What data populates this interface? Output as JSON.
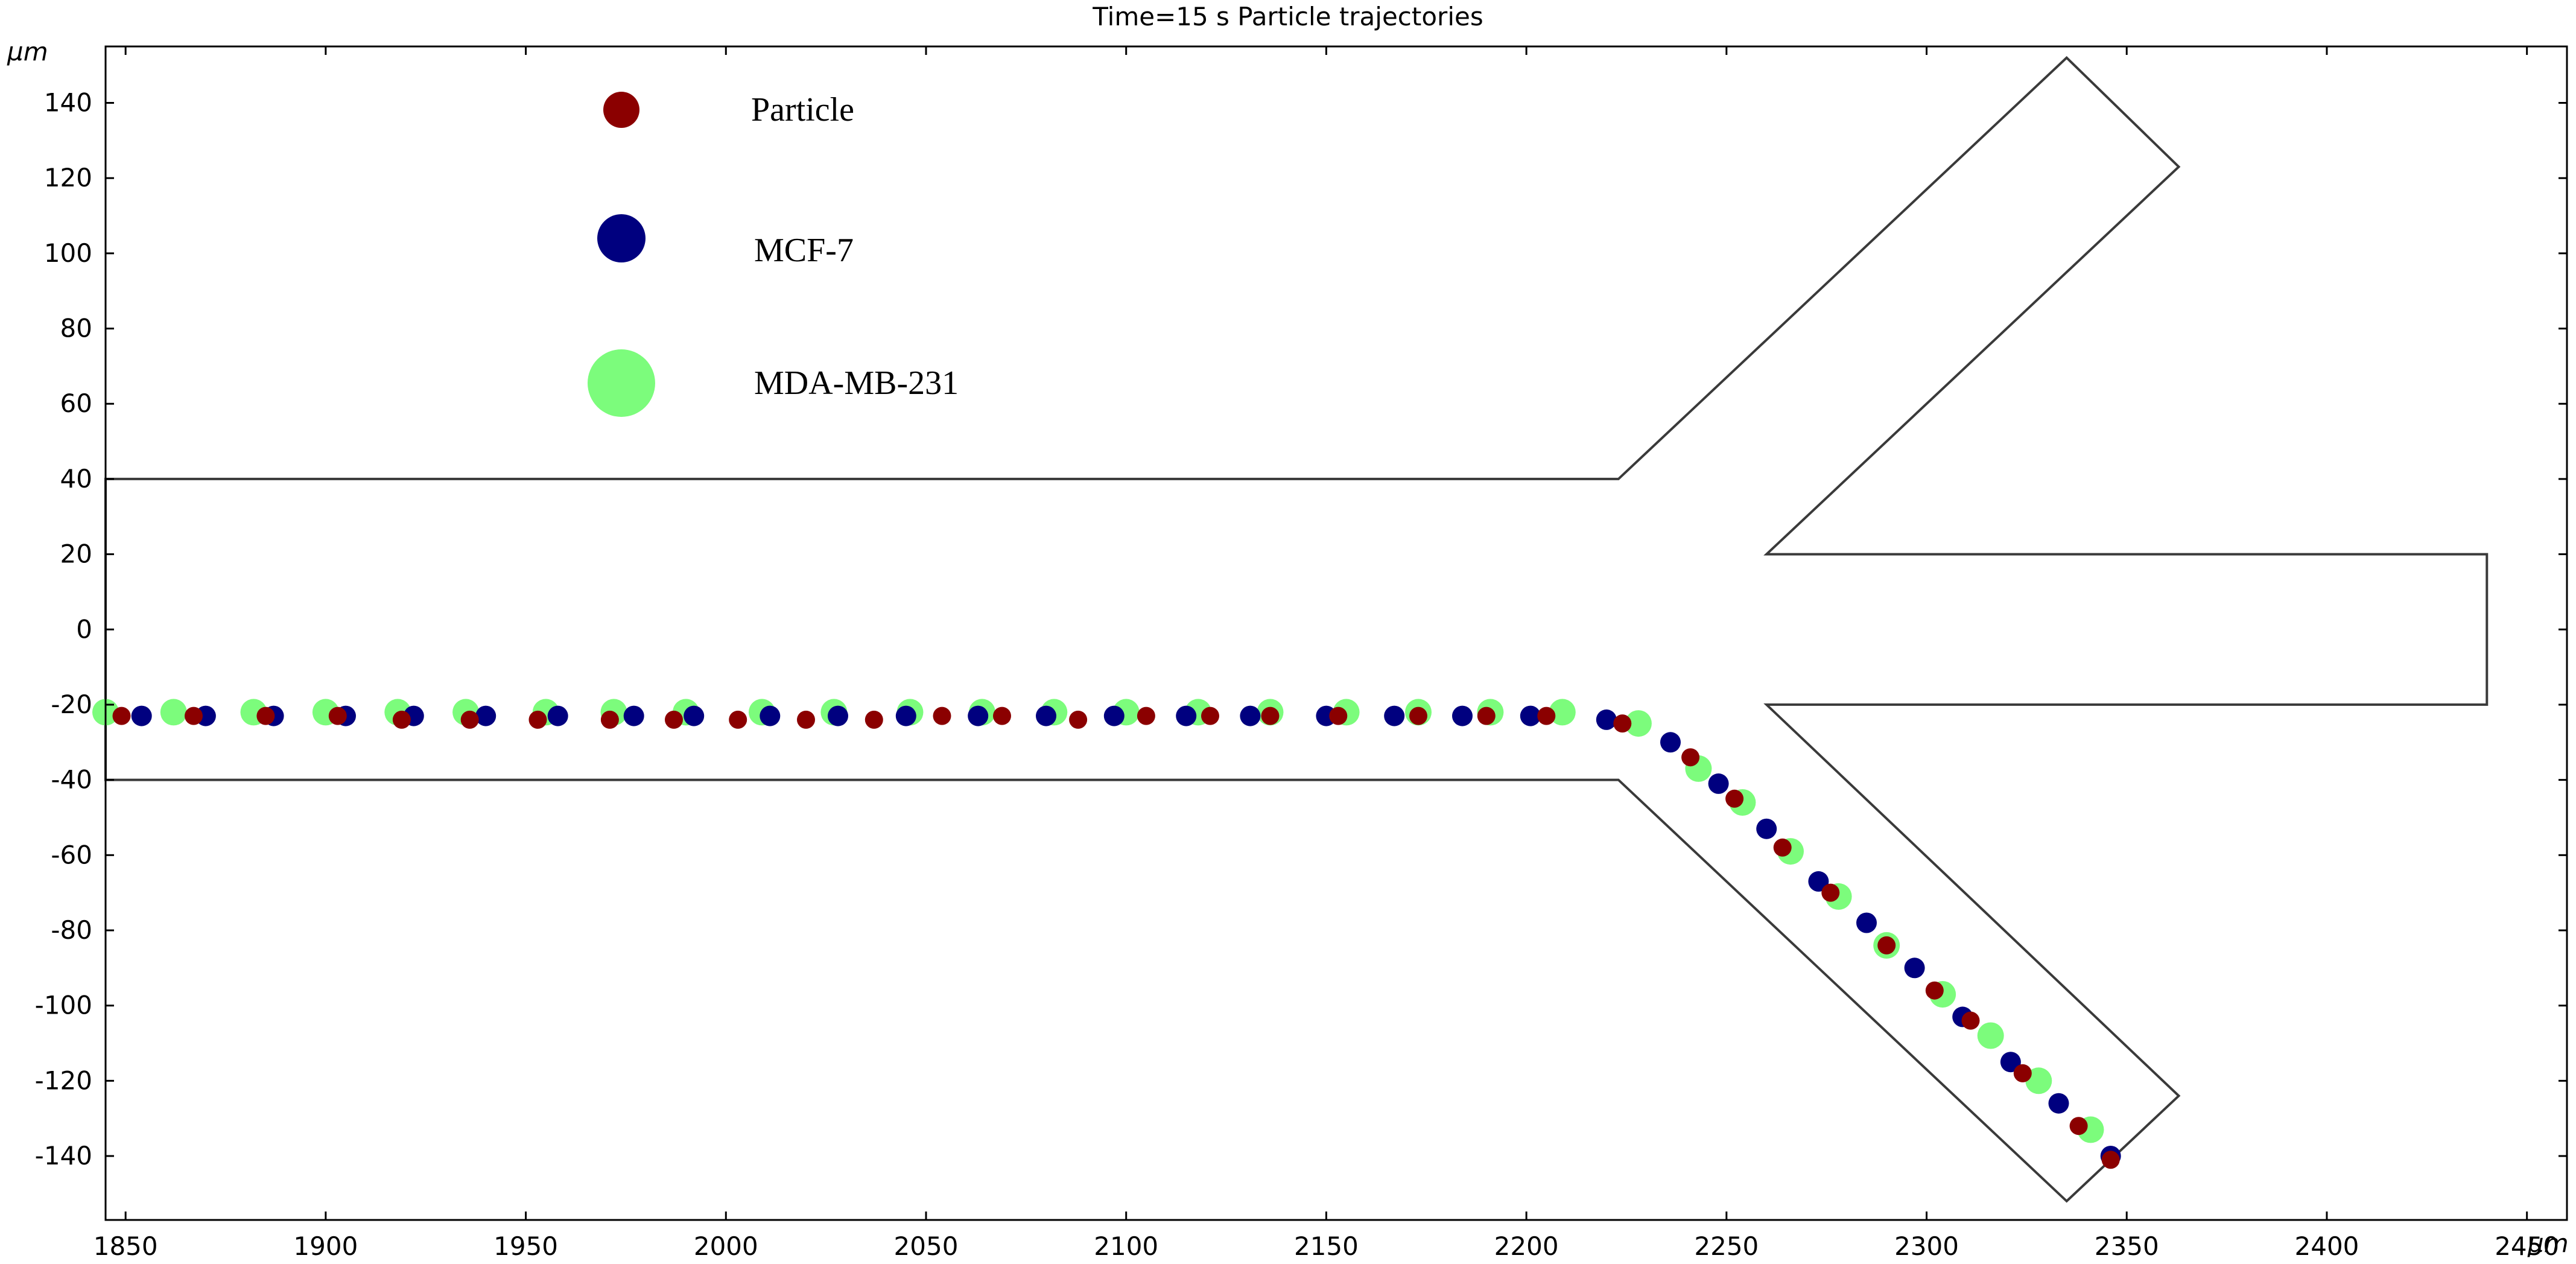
{
  "chart_data": {
    "type": "scatter",
    "title": "Time=15 s  Particle trajectories",
    "xunit": "μm",
    "yunit": "μm",
    "xlim": [
      1845,
      2460
    ],
    "ylim": [
      -157,
      155
    ],
    "x_ticks": [
      1850,
      1900,
      1950,
      2000,
      2050,
      2100,
      2150,
      2200,
      2250,
      2300,
      2350,
      2400,
      2450
    ],
    "y_ticks": [
      140,
      120,
      100,
      80,
      60,
      40,
      20,
      0,
      -20,
      -40,
      -60,
      -80,
      -100,
      -120,
      -140
    ],
    "channel_outline": [
      [
        [
          1845,
          40
        ],
        [
          2223,
          40
        ],
        [
          2335,
          152
        ],
        [
          2363,
          123
        ],
        [
          2260,
          20
        ],
        [
          2440,
          20
        ],
        [
          2440,
          -20
        ],
        [
          2260,
          -20
        ],
        [
          2363,
          -124
        ],
        [
          2335,
          -152
        ],
        [
          2223,
          -40
        ],
        [
          1845,
          -40
        ]
      ]
    ],
    "legend": {
      "placement": "top-left",
      "entries": [
        {
          "label": "Particle",
          "color": "#8b0000"
        },
        {
          "label": "MCF-7",
          "color": "#00007f"
        },
        {
          "label": "MDA-MB-231",
          "color": "#7cfc7c"
        }
      ]
    },
    "series": [
      {
        "name": "MDA-MB-231",
        "color": "#7cfc7c",
        "marker_size": "large",
        "points": [
          [
            1845,
            -22
          ],
          [
            1862,
            -22
          ],
          [
            1882,
            -22
          ],
          [
            1900,
            -22
          ],
          [
            1918,
            -22
          ],
          [
            1935,
            -22
          ],
          [
            1955,
            -22
          ],
          [
            1972,
            -22
          ],
          [
            1990,
            -22
          ],
          [
            2009,
            -22
          ],
          [
            2027,
            -22
          ],
          [
            2046,
            -22
          ],
          [
            2064,
            -22
          ],
          [
            2082,
            -22
          ],
          [
            2100,
            -22
          ],
          [
            2118,
            -22
          ],
          [
            2136,
            -22
          ],
          [
            2155,
            -22
          ],
          [
            2173,
            -22
          ],
          [
            2191,
            -22
          ],
          [
            2209,
            -22
          ],
          [
            2228,
            -25
          ],
          [
            2243,
            -37
          ],
          [
            2254,
            -46
          ],
          [
            2266,
            -59
          ],
          [
            2278,
            -71
          ],
          [
            2290,
            -84
          ],
          [
            2304,
            -97
          ],
          [
            2316,
            -108
          ],
          [
            2328,
            -120
          ],
          [
            2341,
            -133
          ]
        ]
      },
      {
        "name": "MCF-7",
        "color": "#00007f",
        "marker_size": "medium",
        "points": [
          [
            1854,
            -23
          ],
          [
            1870,
            -23
          ],
          [
            1887,
            -23
          ],
          [
            1905,
            -23
          ],
          [
            1922,
            -23
          ],
          [
            1940,
            -23
          ],
          [
            1958,
            -23
          ],
          [
            1977,
            -23
          ],
          [
            1992,
            -23
          ],
          [
            2011,
            -23
          ],
          [
            2028,
            -23
          ],
          [
            2045,
            -23
          ],
          [
            2063,
            -23
          ],
          [
            2080,
            -23
          ],
          [
            2097,
            -23
          ],
          [
            2115,
            -23
          ],
          [
            2131,
            -23
          ],
          [
            2150,
            -23
          ],
          [
            2167,
            -23
          ],
          [
            2184,
            -23
          ],
          [
            2201,
            -23
          ],
          [
            2220,
            -24
          ],
          [
            2236,
            -30
          ],
          [
            2248,
            -41
          ],
          [
            2260,
            -53
          ],
          [
            2273,
            -67
          ],
          [
            2285,
            -78
          ],
          [
            2297,
            -90
          ],
          [
            2309,
            -103
          ],
          [
            2321,
            -115
          ],
          [
            2333,
            -126
          ],
          [
            2346,
            -140
          ]
        ]
      },
      {
        "name": "Particle",
        "color": "#8b0000",
        "marker_size": "small",
        "points": [
          [
            1849,
            -23
          ],
          [
            1867,
            -23
          ],
          [
            1885,
            -23
          ],
          [
            1903,
            -23
          ],
          [
            1919,
            -24
          ],
          [
            1936,
            -24
          ],
          [
            1953,
            -24
          ],
          [
            1971,
            -24
          ],
          [
            1987,
            -24
          ],
          [
            2003,
            -24
          ],
          [
            2020,
            -24
          ],
          [
            2037,
            -24
          ],
          [
            2054,
            -23
          ],
          [
            2069,
            -23
          ],
          [
            2088,
            -24
          ],
          [
            2105,
            -23
          ],
          [
            2121,
            -23
          ],
          [
            2136,
            -23
          ],
          [
            2153,
            -23
          ],
          [
            2173,
            -23
          ],
          [
            2190,
            -23
          ],
          [
            2205,
            -23
          ],
          [
            2224,
            -25
          ],
          [
            2241,
            -34
          ],
          [
            2252,
            -45
          ],
          [
            2264,
            -58
          ],
          [
            2276,
            -70
          ],
          [
            2290,
            -84
          ],
          [
            2302,
            -96
          ],
          [
            2311,
            -104
          ],
          [
            2324,
            -118
          ],
          [
            2338,
            -132
          ],
          [
            2346,
            -141
          ]
        ]
      }
    ]
  }
}
